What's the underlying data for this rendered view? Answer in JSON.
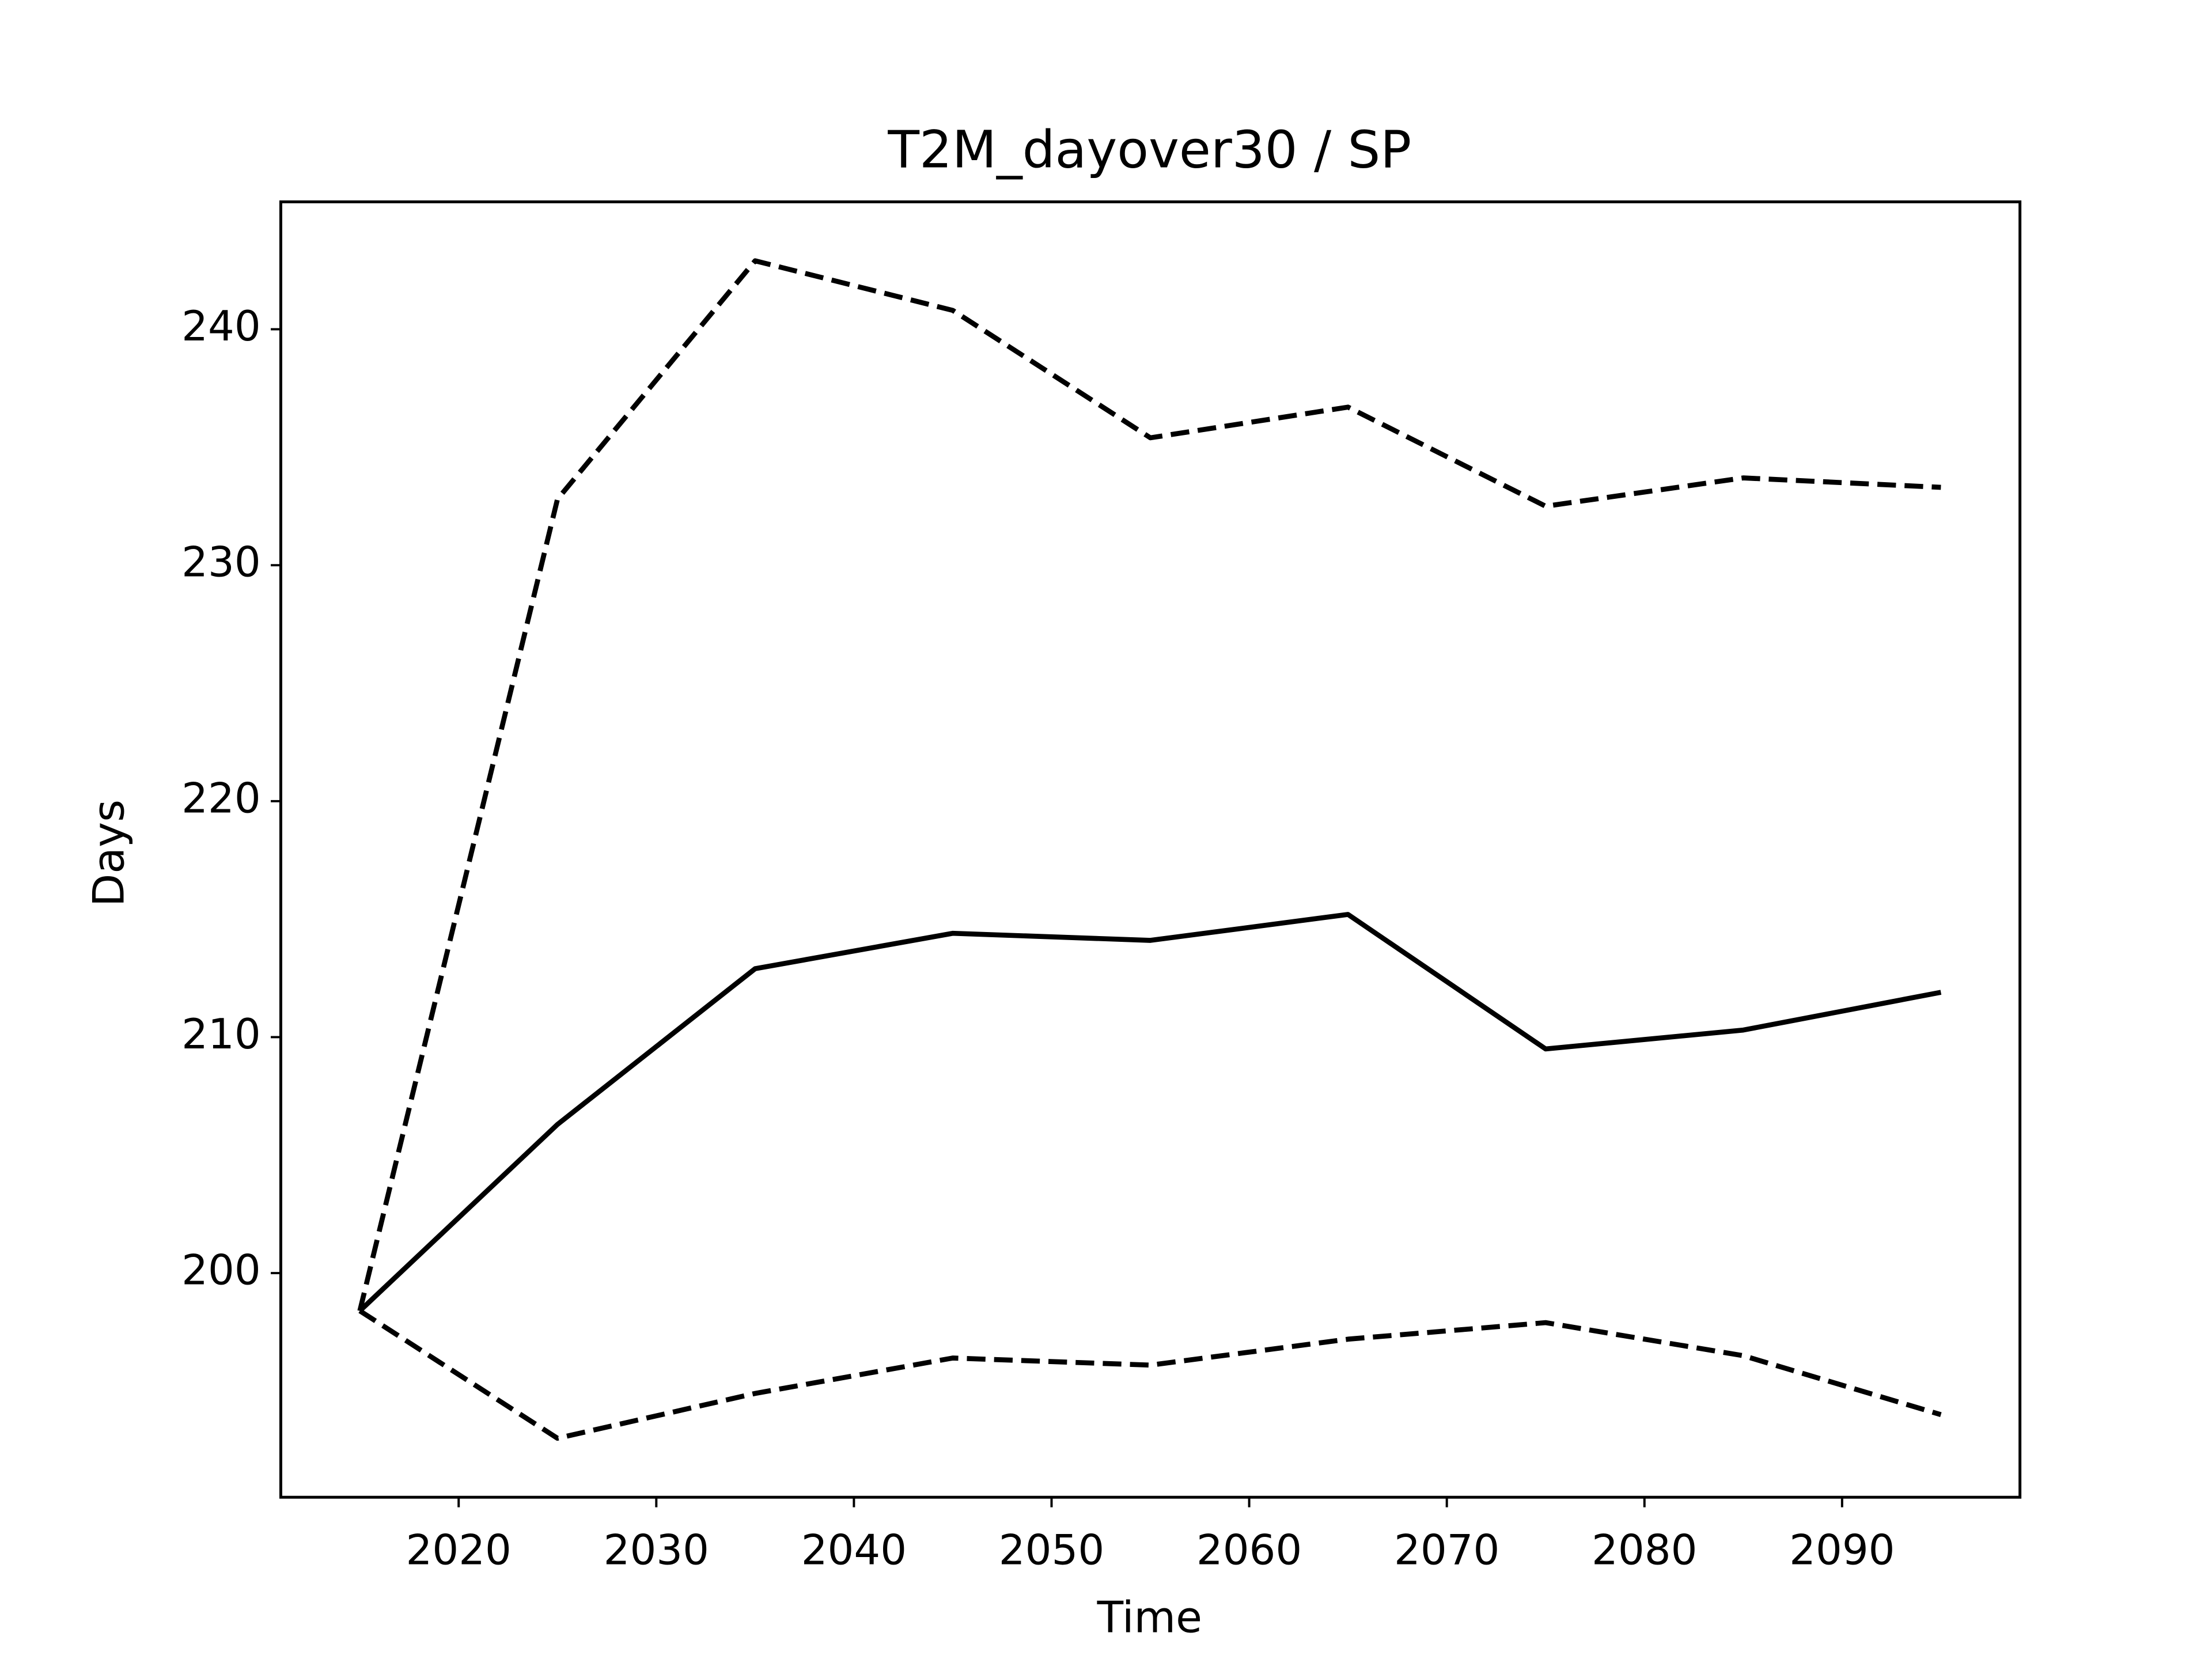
{
  "chart_data": {
    "type": "line",
    "title": "T2M_dayover30 / SP",
    "x_label": "Time",
    "y_label": "Days",
    "x": [
      2015,
      2025,
      2035,
      2045,
      2055,
      2065,
      2075,
      2085,
      2095
    ],
    "series": [
      {
        "color": "#000000",
        "dash": false,
        "values": [
          198.4,
          206.3,
          212.9,
          214.4,
          214.1,
          215.2,
          209.5,
          210.3,
          211.9
        ]
      },
      {
        "color": "#000000",
        "dash": true,
        "values": [
          198.4,
          232.8,
          242.9,
          240.8,
          235.4,
          236.7,
          232.5,
          233.7,
          233.3
        ]
      },
      {
        "color": "#000000",
        "dash": true,
        "values": [
          198.4,
          193.0,
          194.9,
          196.4,
          196.1,
          197.2,
          197.9,
          196.5,
          194.0
        ]
      }
    ],
    "xlim": [
      2011,
      2099
    ],
    "xticks": [
      2020,
      2030,
      2040,
      2050,
      2060,
      2070,
      2080,
      2090
    ],
    "ylim": [
      190.5,
      245.4
    ],
    "yticks": [
      200,
      210,
      220,
      230,
      240
    ],
    "grid": false
  }
}
